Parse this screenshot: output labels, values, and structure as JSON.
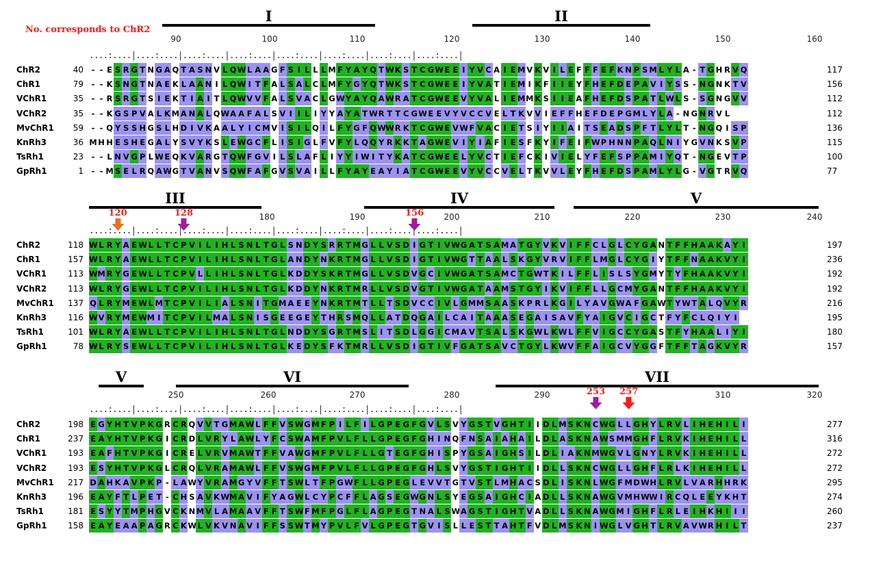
{
  "note": "No. corresponds to ChR2",
  "colors": {
    "conserved": "#1fb31f",
    "similar": "#9b93f2",
    "marker_violet": "#a21c9e",
    "marker_orange": "#e8731c",
    "marker_red": "#ff1a1a",
    "label_red": "#ff1a1a"
  },
  "blocks": [
    {
      "domains": [
        {
          "label": "I",
          "x1": 237,
          "x2": 548
        },
        {
          "label": "II",
          "x1": 690,
          "x2": 950
        }
      ],
      "ticks": [
        "90",
        "100",
        "110",
        "120",
        "130",
        "140",
        "150",
        "160"
      ],
      "markers": [],
      "rows": [
        {
          "name": "ChR2",
          "start": "40",
          "seq": "--ESRGTNGAQTASNVLQWLAAGFSILLLMFYAYQTWKSTCGWEEIYVCAIEMVKVILEFFFEFKNPSMLYLA-TGHRVQ",
          "end": "117"
        },
        {
          "name": "ChR1",
          "start": "79",
          "seq": "--KSNGTNAEKLAANILQWITFALSALCLMFYGYQTWKSTCGWEEIYVATIEMIKFIIEYFHEFDEPAVIYSS-NGNKTV",
          "end": "156"
        },
        {
          "name": "VChR1",
          "start": "35",
          "seq": "--RSRGTSIEKTIAITLQWVVFALSVACLGWYAYQAWRATCGWEEVYVALIEMMKSIIEAFHEFDSPATLWLS-SGNGVV",
          "end": "112"
        },
        {
          "name": "VChR2",
          "start": "35",
          "seq": "--KGSPVALKMANALQWAAFALSVIILIYYAYATWRTTCGWEEVYVCCVELTKVVIEFFHEFDEPGMLYLA-NGNRVL",
          "end": "112"
        },
        {
          "name": "MvChR1",
          "start": "59",
          "seq": "--QYSSHGSLHDIVKAALYICMVISILQILFYGFQWWRKTCGWEVWFVACIETSIYIIAITSEADSPFTLYLT-NGQISP",
          "end": "136"
        },
        {
          "name": "KnRh3",
          "start": "36",
          "seq": "MHHESHEGALYSVYKSLEWGCFLISIGLFVFYLQQYRKKTAGWEVIYIAFIESFKYIFEIFWPHNNPAQLNIYGVNKSVP",
          "end": "115"
        },
        {
          "name": "TsRh1",
          "start": "23",
          "seq": "--LNVGPLWEQKVARGTQWFGVILSLAFLIYYIWITYKATCGWEELYVCTIEFCKIVIELYFEFSPPAMIYQT-NGEVTP",
          "end": "100"
        },
        {
          "name": "GpRh1",
          "start": "1",
          "seq": "--MSELRQAWGTVANVSQWFAFGVSVAILLFYAYEAYIATCGWEEVYVCCVELTKVVLEYFHEFDSPAMLYLG-VGTRVQ",
          "end": "77"
        }
      ]
    },
    {
      "domains": [
        {
          "label": "III",
          "x1": 130,
          "x2": 382
        },
        {
          "label": "IV",
          "x1": 532,
          "x2": 810
        },
        {
          "label": "V",
          "x1": 838,
          "x2": 1196
        }
      ],
      "ticks": [
        "",
        "",
        "180",
        "190",
        "200",
        "210",
        "220",
        "230",
        "240"
      ],
      "markers": [
        {
          "label": "120",
          "col": 3,
          "kind": "orange"
        },
        {
          "label": "128",
          "col": 11,
          "kind": "violet"
        },
        {
          "label": "156",
          "col": 39,
          "kind": "violet"
        }
      ],
      "rows": [
        {
          "name": "ChR2",
          "start": "118",
          "seq": "WLRYAEWLLTCPVILIHLSNLTGLSNDYSRRTMGLLVSDIGTIVWGATSAMATGYVKVIFFCLGLCYGANTFFHAAKAYI",
          "end": "197"
        },
        {
          "name": "ChR1",
          "start": "157",
          "seq": "WLRYAEWLLTCPVILIHLSNLTGLANDYNKRTMGLLVSDIGTIVWGTTAALSKGYVRVIFFLMGLCYGIYTFFNAAKVYI",
          "end": "236"
        },
        {
          "name": "VChR1",
          "start": "113",
          "seq": "WMRYGEWLLTCPVLLIHLSNLTGLKDDYSKRTMGLLVSDVGCIVWGATSAMCTGWTKILFFLISLSYGMYTYFHAAKVYI",
          "end": "192"
        },
        {
          "name": "VChR2",
          "start": "113",
          "seq": "WLRYGEWLLTCPVILIHLSNLTGLKDDYNKRTMRLLVSDVGTIVWGATAAMSTGYIKVIFFLLGCMYGANTFFHAAKVYI",
          "end": "192"
        },
        {
          "name": "MvChR1",
          "start": "137",
          "seq": "QLRYMEWLMTCPVILIALSNITGMAEEYNKRTMTLLTSDVCCIVLGMMSAASKPRLKGILYAVGWAFGAWTYWTALQVYR",
          "end": "216"
        },
        {
          "name": "KnRh3",
          "start": "116",
          "seq": "WVRYMEWMITCPVILMALSNISGEEGEYTHRSMQLLATDQGAILCAITAAASEGAISAVFYAIGVCIGCTFYFCLQIYI",
          "end": "195"
        },
        {
          "name": "TsRh1",
          "start": "101",
          "seq": "WLRYAEWLLTCPVILIHLSNLTGLNDDYSGRTMSLITSDLGGICMAVTSALSKGWLKWLFFVIGCCYGASTFYHAALIYI",
          "end": "180"
        },
        {
          "name": "GpRh1",
          "start": "78",
          "seq": "WLRYSEWLLTCPVILIHLSNLTGLKEDYSFKTMRLLVSDIGTIVFGATSAVCTGYLKWVFFAIGCVYGGFTFFTAGKVYR",
          "end": "157"
        }
      ]
    },
    {
      "domains": [
        {
          "label": "V",
          "x1": 144,
          "x2": 210
        },
        {
          "label": "VI",
          "x1": 257,
          "x2": 597
        },
        {
          "label": "VII",
          "x1": 724,
          "x2": 1196
        }
      ],
      "ticks": [
        "250",
        "260",
        "270",
        "280",
        "290",
        "",
        "",
        "310",
        "320"
      ],
      "markers": [
        {
          "label": "253",
          "col": 61,
          "kind": "violet"
        },
        {
          "label": "257",
          "col": 65,
          "kind": "red"
        }
      ],
      "rows": [
        {
          "name": "ChR2",
          "start": "198",
          "seq": "EGYHTVPKGRCRQVVTGMAWLFFVSWGMFPILFILGPEGFGVLSVYGSTVGHTIIDLMSKNCWGLLGHYLRVLIHEHILI",
          "end": "277"
        },
        {
          "name": "ChR1",
          "start": "237",
          "seq": "EAYHTVPKGICRDLVRYLAWLYFCSWAMFPVLFLLGPEGFGHINQFNSAIAHAILDLASKNAWSMMGHFLRVKIHEHILL",
          "end": "316"
        },
        {
          "name": "VChR1",
          "start": "193",
          "seq": "EAFHTVPKGICRELVRVMAWTFFVAWGMFPVLFLLGTEGFGHISPYGSAIGHSILDLIAKNMWGVLGNYLRVKIHEHILL",
          "end": "272"
        },
        {
          "name": "VChR2",
          "start": "193",
          "seq": "ESYHTVPKGLCRQLVRAMAWLFFVSWGMFPVLFLLGPEGFGHLSVYGSTIGHTIIDLLSKNCWGLLGHFLRLKIHEHILL",
          "end": "272"
        },
        {
          "name": "MvChR1",
          "start": "217",
          "seq": "DAHKAVPKP-LAWYVRAMGYVFFTSWLTFPGWFLLGPEGLEVVTGTVSTLMHACSDLISKNLWGFMDWHLRVLVARHHRK",
          "end": "295"
        },
        {
          "name": "KnRh3",
          "start": "196",
          "seq": "EAYFTLPET-CHSAVKWMAVIFYAGWLCYPCFFLAGSEGWGNLSYEGSAIGHCIADLLSKNAWGVMHWWIRCQLEEYKHT",
          "end": "274"
        },
        {
          "name": "TsRh1",
          "start": "181",
          "seq": "ESYYTMPHGVCKNMVLAMAAVFFTSWFMFPGLFLAGPEGTNALSWAGSTIGHTVADLLSKNAWGMIGHFLRLEIHKHIII",
          "end": "260"
        },
        {
          "name": "GpRh1",
          "start": "158",
          "seq": "EAYEAAPAGRCKWLVKVNAVIFFSSWTMYPVLFVLGPEGTGVISLLESTTAHTFVDLMSKNIWGLVGHTLRVAVWRHILT",
          "end": "237"
        }
      ]
    }
  ]
}
